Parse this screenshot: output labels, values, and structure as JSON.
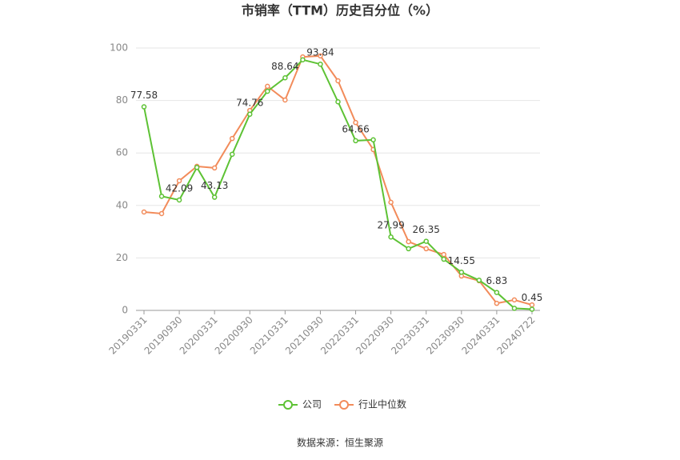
{
  "chart_data": {
    "type": "line",
    "title": "市销率（TTM）历史百分位（%）",
    "categories": [
      "20190331",
      null,
      "20190930",
      null,
      "20200331",
      null,
      "20200930",
      null,
      "20210331",
      null,
      "20210930",
      null,
      "20220331",
      null,
      "20220930",
      null,
      "20230331",
      null,
      "20230930",
      null,
      "20240331",
      null,
      "20240722"
    ],
    "series": [
      {
        "name": "公司",
        "color": "#5dc234",
        "values": [
          77.58,
          43.5,
          42.09,
          54.5,
          43.13,
          59.5,
          74.76,
          83.5,
          88.64,
          95.5,
          93.84,
          79.5,
          64.66,
          65,
          27.99,
          23.5,
          26.35,
          19.5,
          14.55,
          11.5,
          6.83,
          0.8,
          0.45
        ]
      },
      {
        "name": "行业中位数",
        "color": "#f28b5a",
        "values": [
          37.5,
          36.9,
          49.4,
          54.9,
          54.3,
          65.5,
          76.2,
          85.4,
          80.2,
          96.6,
          97,
          87.5,
          71.6,
          61.3,
          41.2,
          26.2,
          23.5,
          21.3,
          13.1,
          11.3,
          2.7,
          4.0,
          2.1
        ]
      }
    ],
    "ylim": [
      0,
      100
    ],
    "yticks": [
      0,
      20,
      40,
      60,
      80,
      100
    ],
    "grid": true,
    "source": "数据来源：恒生聚源"
  }
}
